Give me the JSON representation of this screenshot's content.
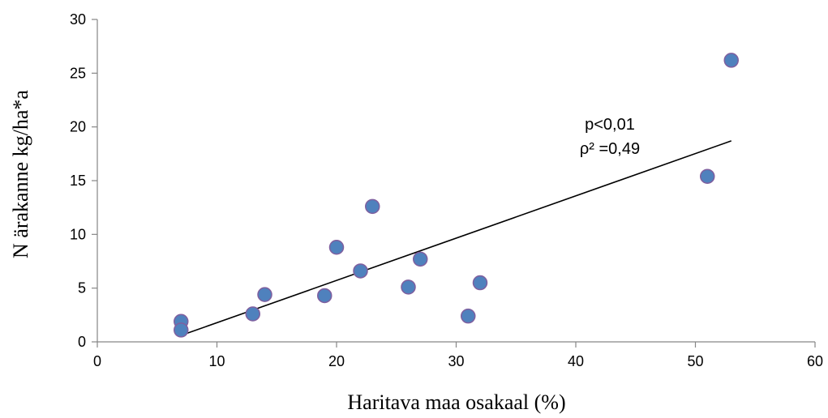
{
  "chart_data": {
    "type": "scatter",
    "xlabel": "Haritava maa osakaal (%)",
    "ylabel": "N ärakanne kg/ha*a",
    "xlim": [
      0,
      60
    ],
    "ylim": [
      0,
      30
    ],
    "xticks": [
      0,
      10,
      20,
      30,
      40,
      50,
      60
    ],
    "yticks": [
      0,
      5,
      10,
      15,
      20,
      25,
      30
    ],
    "grid": false,
    "points": [
      {
        "x": 7,
        "y": 1.9
      },
      {
        "x": 7,
        "y": 1.1
      },
      {
        "x": 13,
        "y": 2.6
      },
      {
        "x": 14,
        "y": 4.4
      },
      {
        "x": 19,
        "y": 4.3
      },
      {
        "x": 20,
        "y": 8.8
      },
      {
        "x": 22,
        "y": 6.6
      },
      {
        "x": 23,
        "y": 12.6
      },
      {
        "x": 26,
        "y": 5.1
      },
      {
        "x": 27,
        "y": 7.7
      },
      {
        "x": 31,
        "y": 2.4
      },
      {
        "x": 32,
        "y": 5.5
      },
      {
        "x": 51,
        "y": 15.4
      },
      {
        "x": 53,
        "y": 26.2
      }
    ],
    "trendline": {
      "x": [
        7,
        53
      ],
      "y": [
        0.6,
        18.7
      ]
    },
    "annotations": [
      "p<0,01",
      "ρ² =0,49"
    ],
    "marker_fill": "#4F81BD",
    "marker_edge": "#7F5F9F",
    "line_color": "#000000"
  }
}
